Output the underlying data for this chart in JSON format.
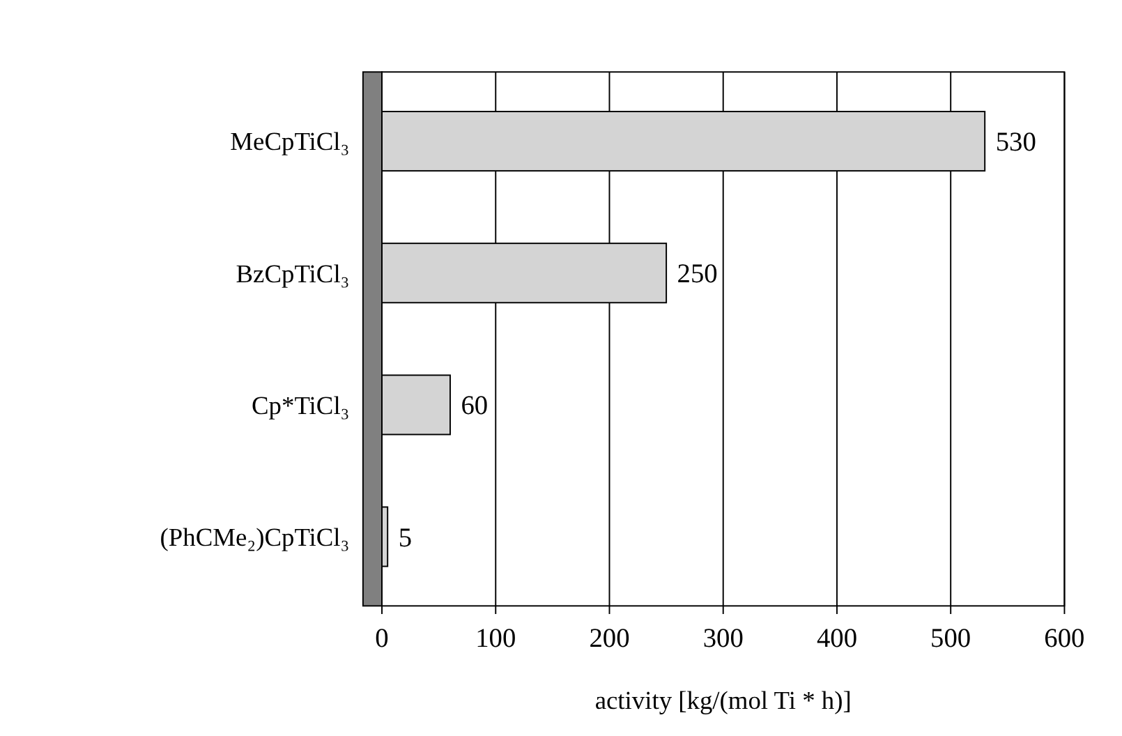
{
  "chart_data": {
    "type": "bar",
    "orientation": "horizontal",
    "xlabel": "activity [kg/(mol Ti * h)]",
    "categories": [
      "MeCpTiCl₃",
      "BzCpTiCl₃",
      "Cp*TiCl₃",
      "(PhCMe₂)CpTiCl₃"
    ],
    "values": [
      530,
      250,
      60,
      5
    ],
    "color": "#d4d4d4",
    "data_labels": true,
    "xlim": [
      0,
      600
    ],
    "xticks": [
      0,
      100,
      200,
      300,
      400,
      500,
      600
    ],
    "grid": "x"
  }
}
